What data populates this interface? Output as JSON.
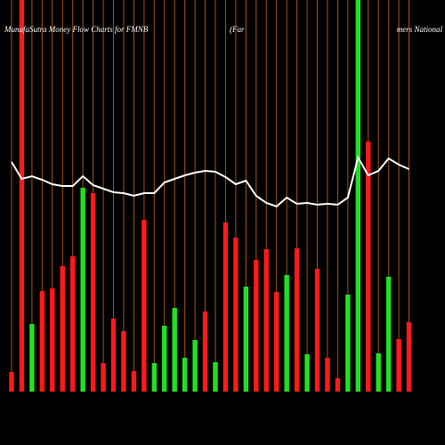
{
  "chart_data": {
    "type": "bar",
    "title": "MunafaSutra  Money Flow  Charts for FMNB",
    "subtitle_left": "(Far",
    "subtitle_right": "mers National",
    "grid": true,
    "grid_color": "#a0521a",
    "categories": [
      null,
      null,
      null,
      null,
      null,
      null,
      null,
      null,
      null,
      null,
      null,
      null,
      null,
      null,
      null,
      null,
      null,
      null,
      null,
      null,
      null,
      null,
      null,
      null,
      null,
      null,
      null,
      null,
      null,
      null,
      null,
      null,
      null,
      null,
      null,
      null,
      null,
      null,
      null,
      null
    ],
    "ylim": [
      0,
      440
    ],
    "series": [
      {
        "type": "bar",
        "values": [
          22,
          440,
          76,
          113,
          116,
          141,
          152,
          229,
          223,
          32,
          82,
          68,
          23,
          193,
          32,
          74,
          94,
          38,
          58,
          90,
          33,
          190,
          173,
          118,
          148,
          160,
          112,
          131,
          161,
          42,
          138,
          38,
          15,
          109,
          440,
          281,
          43,
          129,
          59,
          78
        ],
        "colors": [
          "#ff1a1a",
          "#ff1a1a",
          "#22e022",
          "#ff1a1a",
          "#ff1a1a",
          "#ff1a1a",
          "#ff1a1a",
          "#22e022",
          "#ff1a1a",
          "#ff1a1a",
          "#ff1a1a",
          "#ff1a1a",
          "#ff1a1a",
          "#ff1a1a",
          "#22e022",
          "#22e022",
          "#22e022",
          "#22e022",
          "#22e022",
          "#ff1a1a",
          "#22e022",
          "#ff1a1a",
          "#ff1a1a",
          "#22e022",
          "#ff1a1a",
          "#ff1a1a",
          "#ff1a1a",
          "#22e022",
          "#ff1a1a",
          "#22e022",
          "#ff1a1a",
          "#ff1a1a",
          "#ff1a1a",
          "#22e022",
          "#22e022",
          "#ff1a1a",
          "#22e022",
          "#22e022",
          "#ff1a1a",
          "#ff1a1a"
        ]
      },
      {
        "type": "line",
        "color": "#ffffff",
        "values": [
          258,
          239,
          242,
          238,
          233,
          231,
          231,
          242,
          232,
          228,
          224,
          223,
          220,
          223,
          223,
          235,
          239,
          243,
          246,
          248,
          247,
          241,
          233,
          237,
          220,
          212,
          208,
          218,
          211,
          212,
          210,
          211,
          210,
          218,
          263,
          243,
          248,
          262,
          255,
          250
        ]
      }
    ]
  }
}
